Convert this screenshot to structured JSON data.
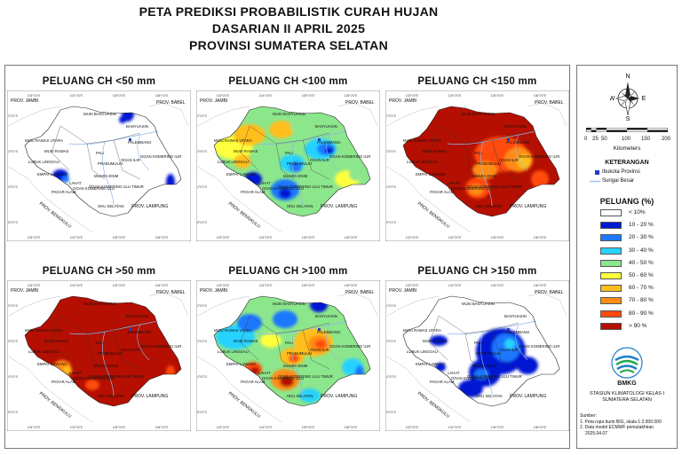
{
  "title": {
    "line1": "PETA PREDIKSI PROBABILISTIK CURAH HUJAN",
    "line2": "DASARIAN II APRIL 2025",
    "line3": "PROVINSI SUMATERA SELATAN"
  },
  "panels": [
    {
      "title": "PELUANG CH <50 mm",
      "scheme": "low50"
    },
    {
      "title": "PELUANG CH <100 mm",
      "scheme": "low100"
    },
    {
      "title": "PELUANG CH <150 mm",
      "scheme": "low150"
    },
    {
      "title": "PELUANG CH >50 mm",
      "scheme": "high50"
    },
    {
      "title": "PELUANG CH >100 mm",
      "scheme": "high100"
    },
    {
      "title": "PELUANG CH >150 mm",
      "scheme": "high150"
    }
  ],
  "map_labels": {
    "prov_jambi": "PROV. JAMBI",
    "prov_babel": "PROV. BABEL",
    "prov_bengkulu": "PROV. BENGKULU",
    "prov_lampung": "PROV. LAMPUNG",
    "musi_banyuasin": "MUSI BANYUASIN",
    "banyuasin": "BANYUASIN",
    "musi_rawas_utara": "MUSI RAWAS UTARA",
    "musi_rawas": "MUSI RAWAS",
    "palembang": "PALEMBANG",
    "pali": "PALI",
    "lubuk_linggau": "LUBUK LINGGAU",
    "prabumulih": "PRABUMULIH",
    "ogan_ilir": "OGAN ILIR",
    "ogan_komering_ilir": "OGAN KOMERING ILIR",
    "muara_enim": "MUARA ENIM",
    "empat_lawang": "EMPAT LAWANG",
    "lahat": "LAHAT",
    "pagar_alam": "PAGAR ALAM",
    "oku_timur": "OGAN KOMERING ULU TIMUR",
    "oku": "OGAN KOMERING ULU",
    "oku_selatan": "OKU SELATAN",
    "coord_top": [
      "103°0'0\"E",
      "104°0'0\"E",
      "105°0'0\"E",
      "106°0'0\"E"
    ],
    "coord_bottom": [
      "103°0'0\"E",
      "104°0'0\"E",
      "105°0'0\"E",
      "106°0'0\"E"
    ],
    "coord_left": [
      "2°0'0\"S",
      "3°0'0\"S",
      "4°0'0\"S",
      "5°0'0\"S"
    ]
  },
  "compass": {
    "n": "N",
    "e": "E",
    "s": "S",
    "w": "W"
  },
  "scale": {
    "ticks": [
      "0",
      "25",
      "50",
      "100",
      "150",
      "200"
    ],
    "unit": "Kilometers"
  },
  "keterangan": {
    "title": "KETERANGAN",
    "items": [
      "Ibukota Provinsi",
      "Sungai Besar"
    ]
  },
  "peluang_legend": {
    "title": "PELUANG (%)",
    "items": [
      {
        "label": "< 10%",
        "color": "#ffffff"
      },
      {
        "label": "10 - 20 %",
        "color": "#0019d2"
      },
      {
        "label": "20 - 30 %",
        "color": "#1e78ff"
      },
      {
        "label": "30 - 40 %",
        "color": "#28d2ff"
      },
      {
        "label": "40 - 50 %",
        "color": "#8ce68c"
      },
      {
        "label": "50 - 60 %",
        "color": "#ffff3c"
      },
      {
        "label": "60 - 70 %",
        "color": "#ffbe1e"
      },
      {
        "label": "70 - 80 %",
        "color": "#ff8c14"
      },
      {
        "label": "80 - 90 %",
        "color": "#ff4b0a"
      },
      {
        "label": "> 90 %",
        "color": "#b40f00"
      }
    ]
  },
  "bmkg": {
    "name": "BMKG",
    "station_line1": "STASIUN KLIMATOLOGI KELAS I",
    "station_line2": "SUMATERA SELATAN"
  },
  "sumber": {
    "title": "Sumber:",
    "line1": "1. Peta rupa bumi BIG, skala 1:2.000.000",
    "line2": "2. Data model ECMWF pemutakhiran",
    "line3": "2025.04.07"
  }
}
